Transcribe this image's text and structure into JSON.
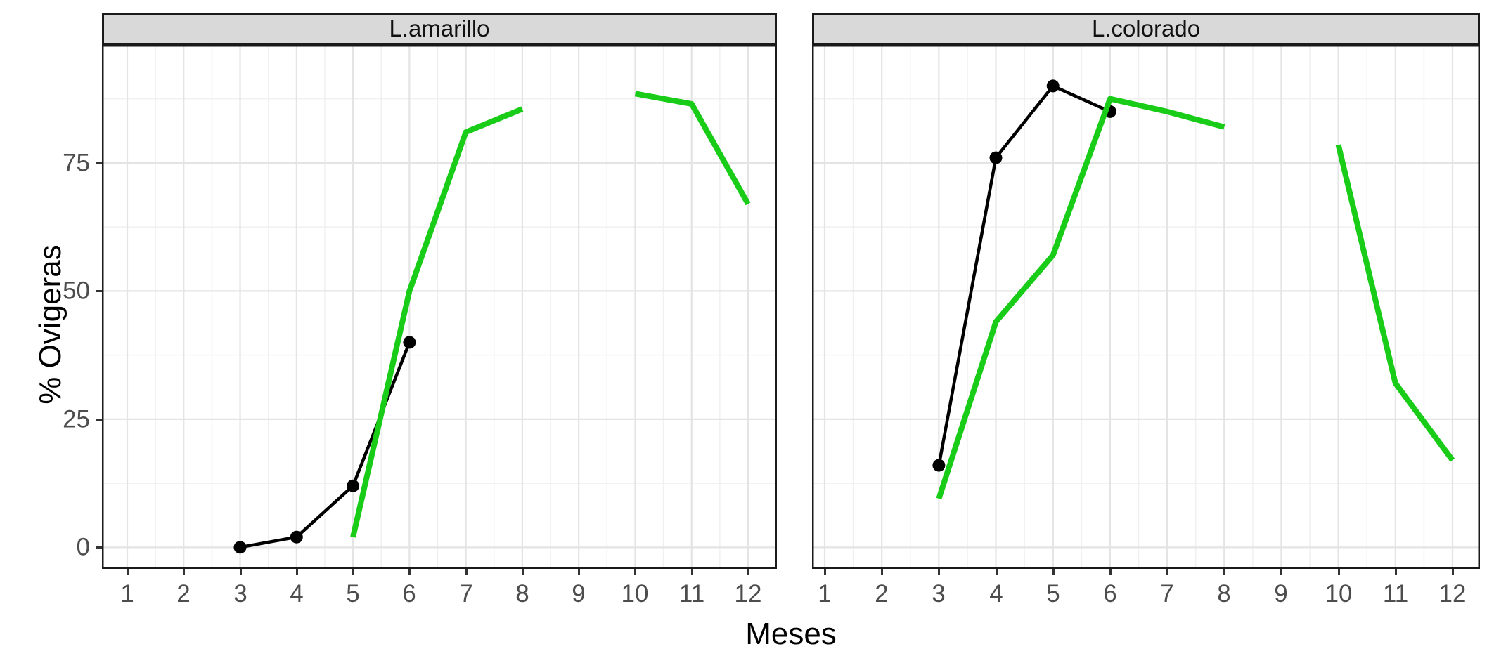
{
  "figure": {
    "y_axis_title": "% Ovigeras",
    "x_axis_title": "Meses"
  },
  "colors": {
    "green_series": "#18CC18",
    "black_series": "#000000",
    "strip_fill": "#D9D9D9",
    "panel_border": "#1A1A1A",
    "grid_major": "#E4E4E4",
    "grid_minor": "#F0F0F0",
    "tick_text": "#4D4D4D"
  },
  "chart_data": {
    "type": "line",
    "title": "",
    "xlabel": "Meses",
    "ylabel": "% Ovigeras",
    "x_domain": [
      1,
      12
    ],
    "y_domain": [
      -4.2,
      98
    ],
    "x_breaks": [
      1,
      2,
      3,
      4,
      5,
      6,
      7,
      8,
      9,
      10,
      11,
      12
    ],
    "x_tick_labels": [
      "1",
      "2",
      "3",
      "4",
      "5",
      "6",
      "7",
      "8",
      "9",
      "10",
      "11",
      "12"
    ],
    "y_major_breaks": [
      0,
      25,
      50,
      75
    ],
    "y_tick_labels": [
      "0",
      "25",
      "50",
      "75"
    ],
    "y_minor_breaks": [
      12.5,
      37.5,
      62.5,
      87.5
    ],
    "grid": true,
    "legend": "none",
    "facets": [
      {
        "label": "L.amarillo",
        "series": [
          {
            "name": "black-points-line",
            "color": "#000000",
            "has_points": true,
            "segments": [
              [
                [
                  3,
                  0
                ],
                [
                  4,
                  2
                ],
                [
                  5,
                  12
                ],
                [
                  6,
                  40
                ]
              ]
            ]
          },
          {
            "name": "green-line",
            "color": "#18CC18",
            "has_points": false,
            "segments": [
              [
                [
                  5,
                  2
                ],
                [
                  6,
                  50
                ],
                [
                  7,
                  81
                ],
                [
                  8,
                  85.5
                ]
              ],
              [
                [
                  10,
                  88.5
                ],
                [
                  11,
                  86.5
                ],
                [
                  12,
                  67
                ]
              ]
            ]
          }
        ]
      },
      {
        "label": "L.colorado",
        "series": [
          {
            "name": "black-points-line",
            "color": "#000000",
            "has_points": true,
            "segments": [
              [
                [
                  3,
                  16
                ],
                [
                  4,
                  76
                ],
                [
                  5,
                  90
                ],
                [
                  6,
                  85
                ]
              ]
            ]
          },
          {
            "name": "green-line",
            "color": "#18CC18",
            "has_points": false,
            "segments": [
              [
                [
                  3,
                  9.5
                ],
                [
                  4,
                  44
                ],
                [
                  5,
                  57
                ],
                [
                  6,
                  87.5
                ],
                [
                  7,
                  85
                ],
                [
                  8,
                  82
                ]
              ],
              [
                [
                  10,
                  78.5
                ],
                [
                  11,
                  32
                ],
                [
                  12,
                  17
                ]
              ]
            ]
          }
        ]
      }
    ]
  }
}
